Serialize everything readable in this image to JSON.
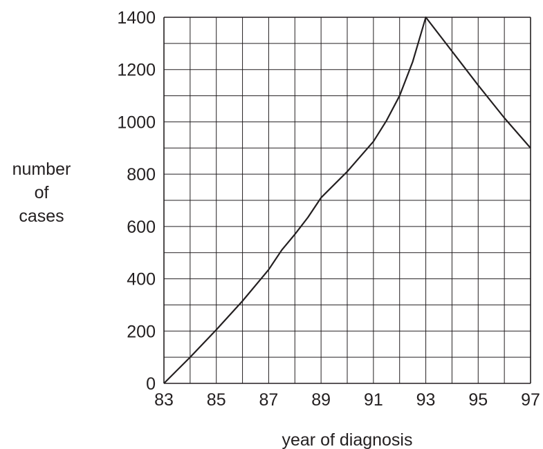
{
  "chart_data": {
    "type": "line",
    "title": "",
    "xlabel": "year of diagnosis",
    "ylabel_lines": [
      "number",
      "of",
      "cases"
    ],
    "xlim": [
      83,
      97
    ],
    "ylim": [
      0,
      1400
    ],
    "x_ticks": [
      "83",
      "85",
      "87",
      "89",
      "91",
      "93",
      "95",
      "97"
    ],
    "y_ticks": [
      "0",
      "200",
      "400",
      "600",
      "800",
      "1000",
      "1200",
      "1400"
    ],
    "grid": true,
    "grid_x_step": 1,
    "grid_y_step": 100,
    "series": [
      {
        "x": [
          83,
          84,
          85,
          86,
          87,
          87.5,
          88,
          88.5,
          89,
          90,
          91,
          91.5,
          92,
          92.5,
          93,
          94,
          95,
          96,
          97
        ],
        "y": [
          0,
          100,
          205,
          315,
          435,
          510,
          570,
          635,
          710,
          810,
          925,
          1005,
          1100,
          1230,
          1400,
          1270,
          1140,
          1015,
          900
        ]
      }
    ],
    "line_color": "#231f20",
    "grid_color": "#231f20"
  }
}
